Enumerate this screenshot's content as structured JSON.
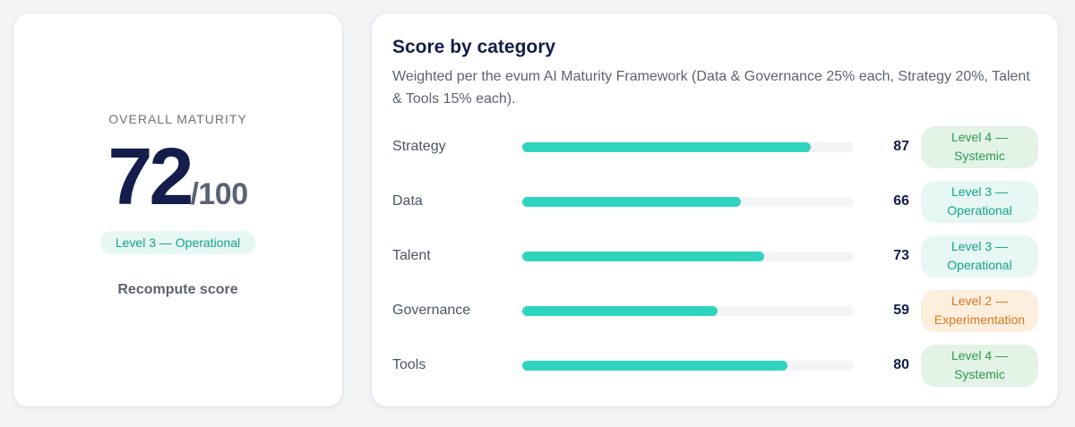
{
  "overall": {
    "label": "OVERALL MATURITY",
    "score": "72",
    "denominator": "/100",
    "level": "Level 3 — Operational",
    "recompute_label": "Recompute score"
  },
  "categories": {
    "title": "Score by category",
    "subtitle": "Weighted per the evum AI Maturity Framework (Data & Governance 25% each, Strategy 20%, Talent & Tools 15% each).",
    "rows": [
      {
        "name": "Strategy",
        "score": "87",
        "fraction": 0.87,
        "level_line1": "Level 4 —",
        "level_line2": "Systemic",
        "badge_bg": "#e3f3e6",
        "badge_fg": "#2e9b4e"
      },
      {
        "name": "Data",
        "score": "66",
        "fraction": 0.66,
        "level_line1": "Level 3 —",
        "level_line2": "Operational",
        "badge_bg": "#e6f7f4",
        "badge_fg": "#14a38a"
      },
      {
        "name": "Talent",
        "score": "73",
        "fraction": 0.73,
        "level_line1": "Level 3 —",
        "level_line2": "Operational",
        "badge_bg": "#e6f7f4",
        "badge_fg": "#14a38a"
      },
      {
        "name": "Governance",
        "score": "59",
        "fraction": 0.59,
        "level_line1": "Level 2 —",
        "level_line2": "Experimentation",
        "badge_bg": "#fdeedd",
        "badge_fg": "#d9781f"
      },
      {
        "name": "Tools",
        "score": "80",
        "fraction": 0.8,
        "level_line1": "Level 4 —",
        "level_line2": "Systemic",
        "badge_bg": "#e3f3e6",
        "badge_fg": "#2e9b4e"
      }
    ]
  },
  "colors": {
    "bar_fill": "#2fd4be",
    "bar_track": "#f3f4f6",
    "heading": "#141d4b"
  }
}
